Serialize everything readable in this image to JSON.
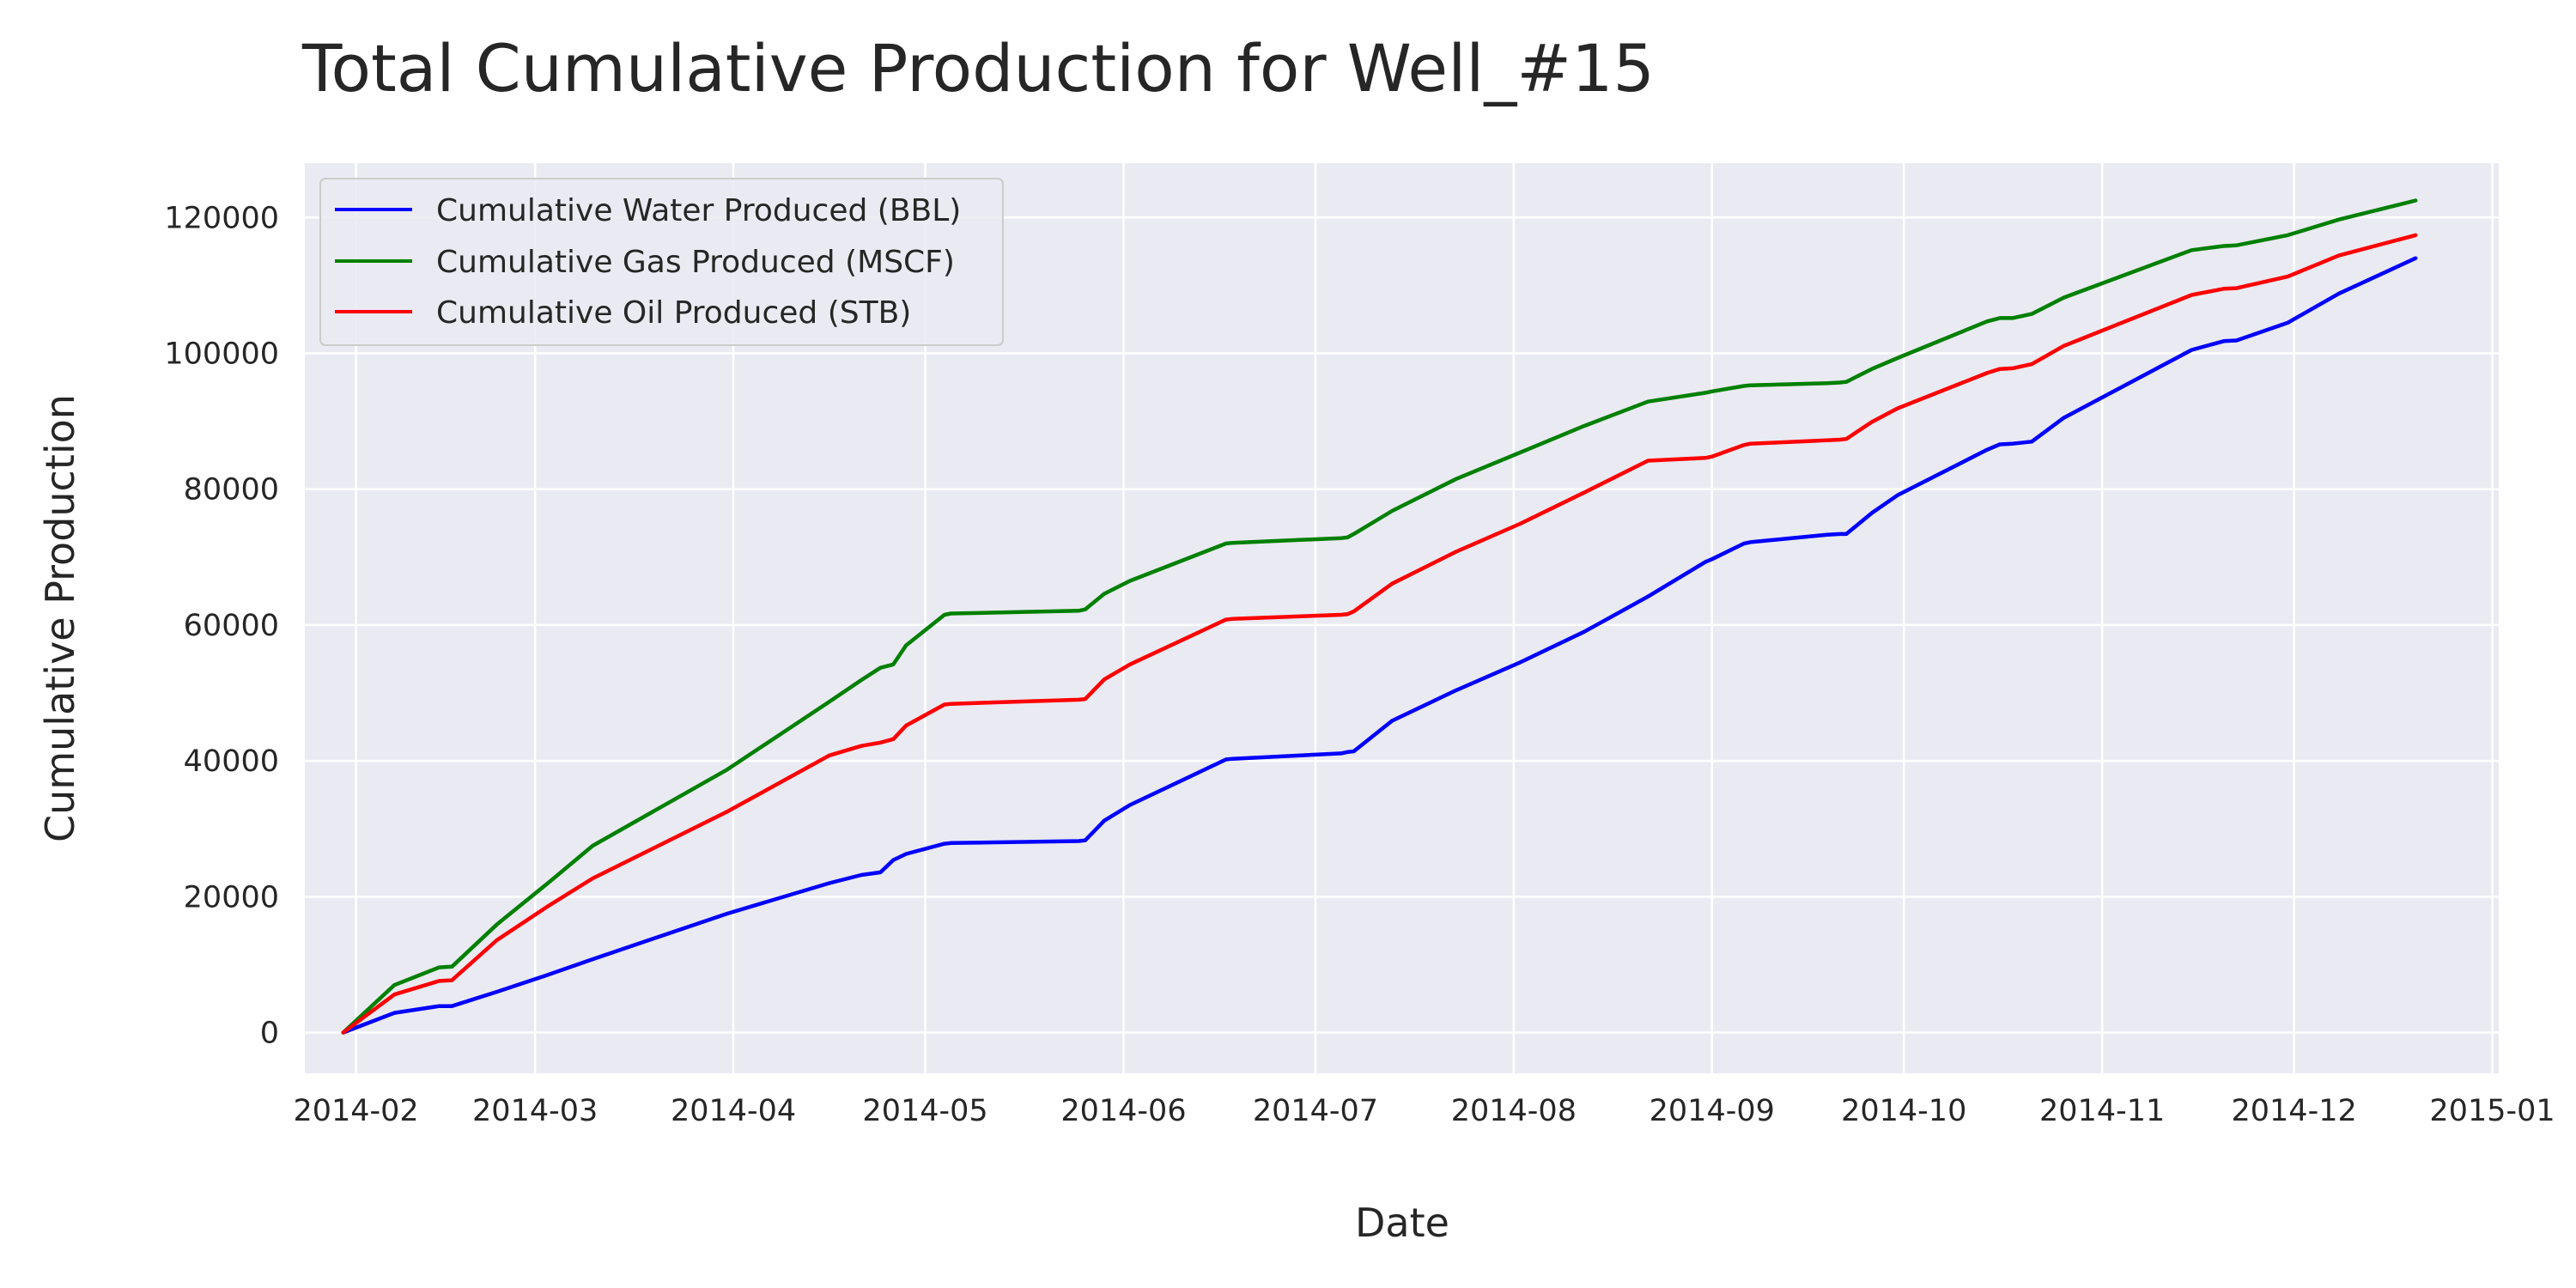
{
  "chart_data": {
    "type": "line",
    "title": "Total Cumulative Production for Well_#15",
    "xlabel": "Date",
    "ylabel": "Cumulative Production",
    "x_ticks": [
      "2014-02",
      "2014-03",
      "2014-04",
      "2014-05",
      "2014-06",
      "2014-07",
      "2014-08",
      "2014-09",
      "2014-10",
      "2014-11",
      "2014-12",
      "2015-01"
    ],
    "y_ticks": [
      0,
      20000,
      40000,
      60000,
      80000,
      100000,
      120000
    ],
    "ylim": [
      -6000,
      128000
    ],
    "xlim": [
      "2014-01-24",
      "2015-01-02"
    ],
    "grid": true,
    "legend_position": "top-left",
    "background_color": "#eaeaf2",
    "x": [
      "2014-01-30",
      "2014-02-07",
      "2014-02-14",
      "2014-02-16",
      "2014-02-23",
      "2014-03-03",
      "2014-03-10",
      "2014-03-31",
      "2014-04-16",
      "2014-04-21",
      "2014-04-24",
      "2014-04-26",
      "2014-04-28",
      "2014-05-04",
      "2014-05-05",
      "2014-05-25",
      "2014-05-26",
      "2014-05-29",
      "2014-06-02",
      "2014-06-17",
      "2014-06-18",
      "2014-07-05",
      "2014-07-06",
      "2014-07-07",
      "2014-07-13",
      "2014-07-23",
      "2014-08-02",
      "2014-08-12",
      "2014-08-22",
      "2014-08-31",
      "2014-09-01",
      "2014-09-06",
      "2014-09-07",
      "2014-09-19",
      "2014-09-21",
      "2014-09-22",
      "2014-09-26",
      "2014-09-30",
      "2014-10-14",
      "2014-10-16",
      "2014-10-18",
      "2014-10-21",
      "2014-10-26",
      "2014-11-15",
      "2014-11-20",
      "2014-11-22",
      "2014-11-30",
      "2014-12-08",
      "2014-12-20"
    ],
    "series": [
      {
        "name": "Cumulative Water Produced (BBL)",
        "color": "#0000ff",
        "values": [
          0,
          2900,
          3900,
          3900,
          6000,
          8500,
          10800,
          17500,
          22000,
          23200,
          23600,
          25400,
          26300,
          27800,
          27900,
          28200,
          28300,
          31200,
          33500,
          40200,
          40300,
          41100,
          41300,
          41400,
          45900,
          50400,
          54500,
          59000,
          64200,
          69300,
          69700,
          72000,
          72200,
          73300,
          73400,
          73400,
          76500,
          79100,
          85800,
          86600,
          86700,
          87000,
          90500,
          100500,
          101800,
          101900,
          104500,
          108800,
          114000
        ]
      },
      {
        "name": "Cumulative Gas Produced (MSCF)",
        "color": "#008000",
        "values": [
          0,
          7000,
          9600,
          9700,
          15900,
          22000,
          27500,
          38700,
          48700,
          51900,
          53700,
          54200,
          57000,
          61500,
          61700,
          62100,
          62300,
          64600,
          66500,
          72000,
          72100,
          72800,
          72900,
          73400,
          76800,
          81500,
          85400,
          89300,
          92900,
          94200,
          94400,
          95200,
          95300,
          95600,
          95700,
          95800,
          97700,
          99300,
          104700,
          105200,
          105200,
          105800,
          108200,
          115200,
          115800,
          115900,
          117400,
          119700,
          122500
        ]
      },
      {
        "name": "Cumulative Oil Produced (STB)",
        "color": "#ff0000",
        "values": [
          0,
          5600,
          7600,
          7700,
          13600,
          18600,
          22700,
          32500,
          40800,
          42200,
          42700,
          43200,
          45200,
          48300,
          48400,
          49000,
          49100,
          52000,
          54200,
          60800,
          60900,
          61500,
          61600,
          62000,
          66100,
          70800,
          74900,
          79500,
          84200,
          84600,
          84800,
          86500,
          86700,
          87200,
          87300,
          87400,
          89900,
          91900,
          97100,
          97700,
          97800,
          98400,
          101100,
          108600,
          109500,
          109600,
          111300,
          114400,
          117400
        ]
      }
    ]
  }
}
